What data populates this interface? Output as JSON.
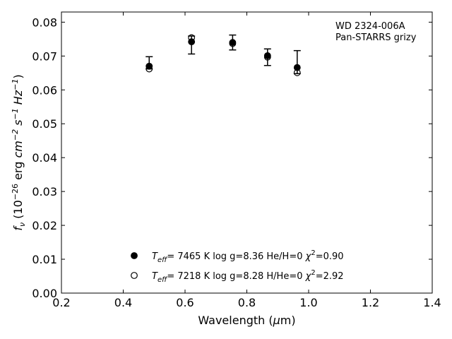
{
  "chart_data": {
    "type": "scatter",
    "annotation": [
      "WD 2324-006A",
      "Pan-STARRS grizy"
    ],
    "xlabel": "Wavelength (μm)",
    "ylabel": "fν (10⁻²⁶ erg cm⁻² s⁻¹ Hz⁻¹)",
    "xlim": [
      0.2,
      1.4
    ],
    "ylim": [
      0.0,
      0.083
    ],
    "xticks": [
      "0.2",
      "0.4",
      "0.6",
      "0.8",
      "1.0",
      "1.2",
      "1.4"
    ],
    "yticks": [
      "0.00",
      "0.01",
      "0.02",
      "0.03",
      "0.04",
      "0.05",
      "0.06",
      "0.07",
      "0.08"
    ],
    "observed": {
      "x": [
        0.484,
        0.621,
        0.754,
        0.867,
        0.963
      ],
      "y": [
        0.067,
        0.0742,
        0.074,
        0.0701,
        0.0666
      ],
      "yerr_low": [
        0.0662,
        0.0706,
        0.0718,
        0.0672,
        0.0648
      ],
      "yerr_high": [
        0.0698,
        0.0759,
        0.0762,
        0.0721,
        0.0716
      ]
    },
    "series": [
      {
        "name": "Teff= 7465 K log g=8.36 He/H=0 χ²=0.90",
        "marker": "filled",
        "teff": "7465 K",
        "logg": "8.36",
        "composition": "He/H=0",
        "chi2": "0.90",
        "x": [
          0.484,
          0.621,
          0.754,
          0.867,
          0.963
        ],
        "y": [
          0.067,
          0.0742,
          0.074,
          0.0701,
          0.0666
        ]
      },
      {
        "name": "Teff= 7218 K log g=8.28 H/He=0 χ²=2.92",
        "marker": "open",
        "teff": "7218 K",
        "logg": "8.28",
        "composition": "H/He=0",
        "chi2": "2.92",
        "x": [
          0.484,
          0.621,
          0.754,
          0.867,
          0.963
        ],
        "y": [
          0.0662,
          0.0754,
          0.0737,
          0.0697,
          0.0651
        ]
      }
    ],
    "legend_position": "lower-center",
    "grid": false
  }
}
